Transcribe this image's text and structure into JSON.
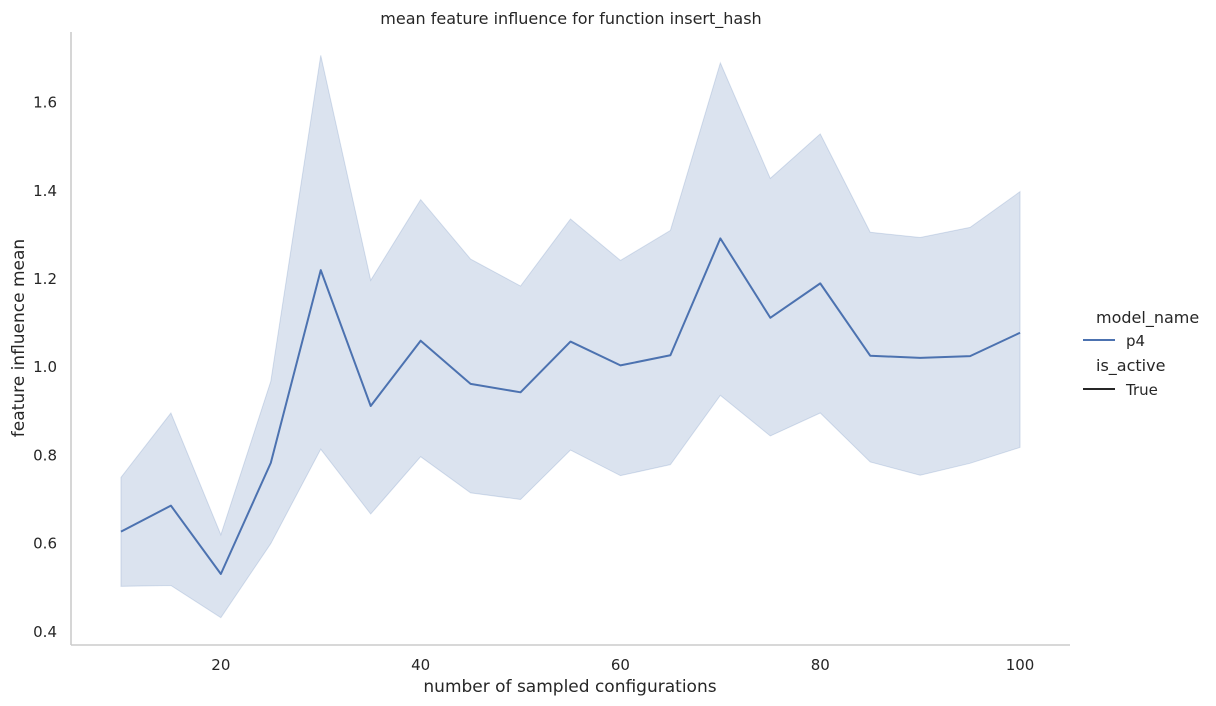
{
  "chart_data": {
    "type": "line",
    "title": "mean feature influence for function insert_hash",
    "xlabel": "number of sampled configurations",
    "ylabel": "feature influence mean",
    "xlim": [
      5,
      105
    ],
    "ylim": [
      0.37,
      1.76
    ],
    "xticks": [
      20,
      40,
      60,
      80,
      100
    ],
    "yticks": [
      0.4,
      0.6,
      0.8,
      1.0,
      1.2,
      1.4,
      1.6
    ],
    "x": [
      10,
      15,
      20,
      25,
      30,
      35,
      40,
      45,
      50,
      55,
      60,
      65,
      70,
      75,
      80,
      85,
      90,
      95,
      100
    ],
    "series": [
      {
        "name": "p4",
        "color": "#4c72b0",
        "values": [
          0.627,
          0.686,
          0.531,
          0.783,
          1.22,
          0.912,
          1.06,
          0.962,
          0.943,
          1.058,
          1.004,
          1.027,
          1.292,
          1.112,
          1.19,
          1.026,
          1.021,
          1.025,
          1.078
        ],
        "ci_lower": [
          0.503,
          0.505,
          0.432,
          0.6,
          0.814,
          0.667,
          0.797,
          0.715,
          0.7,
          0.812,
          0.754,
          0.779,
          0.936,
          0.844,
          0.896,
          0.785,
          0.755,
          0.782,
          0.818
        ],
        "ci_upper": [
          0.75,
          0.896,
          0.62,
          0.968,
          1.707,
          1.197,
          1.38,
          1.245,
          1.184,
          1.336,
          1.242,
          1.31,
          1.69,
          1.428,
          1.529,
          1.306,
          1.294,
          1.317,
          1.398
        ]
      }
    ],
    "grid": false,
    "legend": {
      "placement": "right",
      "hue_title": "model_name",
      "hue_entries": [
        {
          "label": "p4",
          "color": "#4c72b0"
        }
      ],
      "style_title": "is_active",
      "style_entries": [
        {
          "label": "True",
          "color": "#262626"
        }
      ]
    }
  }
}
